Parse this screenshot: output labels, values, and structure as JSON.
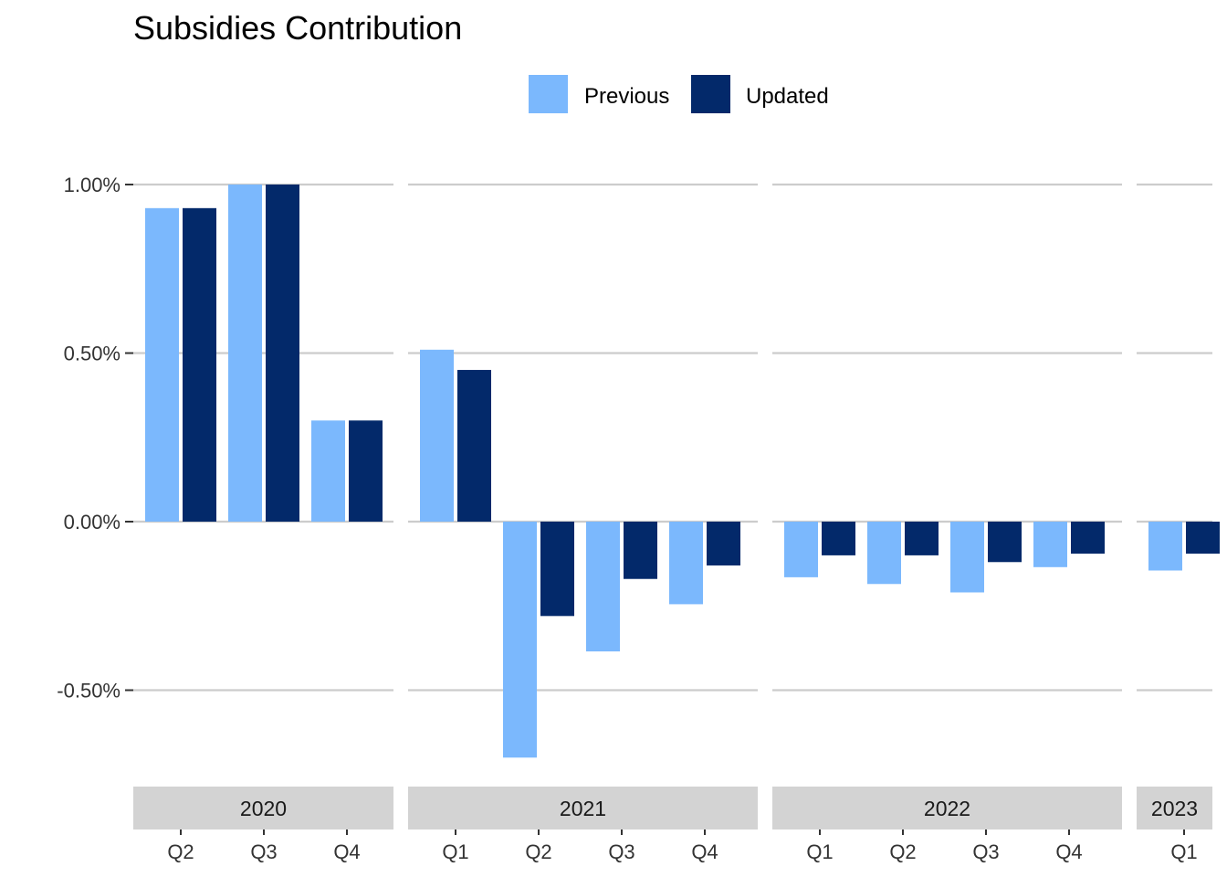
{
  "chart_data": {
    "type": "bar",
    "title": "Subsidies Contribution",
    "xlabel": "",
    "ylabel": "",
    "ylim": [
      -0.7,
      1.0
    ],
    "yticks": [
      {
        "value": -0.5,
        "label": "-0.50%"
      },
      {
        "value": 0.0,
        "label": "0.00%"
      },
      {
        "value": 0.5,
        "label": "0.50%"
      },
      {
        "value": 1.0,
        "label": "1.00%"
      }
    ],
    "legend": {
      "placement": "top",
      "entries": [
        {
          "name": "Previous",
          "color": "#7bb8fd"
        },
        {
          "name": "Updated",
          "color": "#03296a"
        }
      ]
    },
    "grid": true,
    "facets": [
      {
        "label": "2020",
        "categories": [
          "Q2",
          "Q3",
          "Q4"
        ],
        "series": [
          {
            "name": "Previous",
            "values": [
              0.93,
              1.0,
              0.3
            ]
          },
          {
            "name": "Updated",
            "values": [
              0.93,
              1.0,
              0.3
            ]
          }
        ]
      },
      {
        "label": "2021",
        "categories": [
          "Q1",
          "Q2",
          "Q3",
          "Q4"
        ],
        "series": [
          {
            "name": "Previous",
            "values": [
              0.51,
              -0.7,
              -0.385,
              -0.245
            ]
          },
          {
            "name": "Updated",
            "values": [
              0.45,
              -0.28,
              -0.17,
              -0.13
            ]
          }
        ]
      },
      {
        "label": "2022",
        "categories": [
          "Q1",
          "Q2",
          "Q3",
          "Q4"
        ],
        "series": [
          {
            "name": "Previous",
            "values": [
              -0.165,
              -0.185,
              -0.21,
              -0.135
            ]
          },
          {
            "name": "Updated",
            "values": [
              -0.1,
              -0.1,
              -0.12,
              -0.095
            ]
          }
        ]
      },
      {
        "label": "2023",
        "categories": [
          "Q1"
        ],
        "series": [
          {
            "name": "Previous",
            "values": [
              -0.145
            ]
          },
          {
            "name": "Updated",
            "values": [
              -0.095
            ]
          }
        ]
      }
    ]
  }
}
